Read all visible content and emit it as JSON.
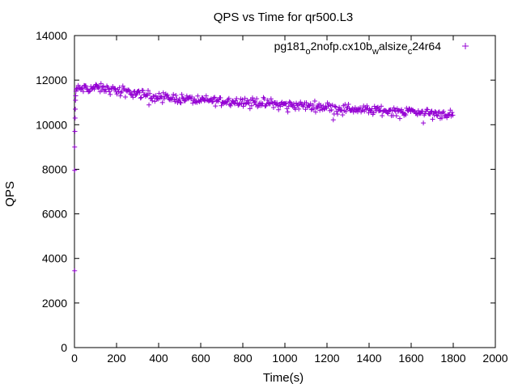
{
  "chart_data": {
    "type": "scatter",
    "title": "QPS vs Time for qr500.L3",
    "xlabel": "Time(s)",
    "ylabel": "QPS",
    "xlim": [
      0,
      2000
    ],
    "ylim": [
      0,
      14000
    ],
    "xticks": [
      0,
      200,
      400,
      600,
      800,
      1000,
      1200,
      1400,
      1600,
      1800,
      2000
    ],
    "yticks": [
      0,
      2000,
      4000,
      6000,
      8000,
      10000,
      12000,
      14000
    ],
    "grid": false,
    "legend_position": "top-right",
    "marker": "+",
    "series": [
      {
        "name": "pg181_o2nofp.cx10b_walsize_c24r64",
        "legend": {
          "base1": "pg181",
          "sub1": "o",
          "mid": "2nofp.cx10b",
          "sub2": "w",
          "mid2": "alsize",
          "sub3": "c",
          "end": "24r64"
        },
        "color": "#9400d3",
        "startup_points": [
          [
            1,
            3450
          ],
          [
            1,
            7950
          ],
          [
            1,
            9000
          ],
          [
            2,
            9700
          ],
          [
            3,
            10300
          ],
          [
            4,
            10700
          ],
          [
            5,
            11100
          ],
          [
            6,
            11300
          ],
          [
            7,
            11500
          ],
          [
            8,
            11600
          ]
        ],
        "trend": [
          [
            10,
            11600
          ],
          [
            100,
            11650
          ],
          [
            200,
            11550
          ],
          [
            300,
            11400
          ],
          [
            400,
            11250
          ],
          [
            600,
            11100
          ],
          [
            800,
            11050
          ],
          [
            1000,
            10900
          ],
          [
            1200,
            10800
          ],
          [
            1400,
            10650
          ],
          [
            1600,
            10600
          ],
          [
            1800,
            10450
          ]
        ],
        "sample_interval_s": 4,
        "spread": 200
      }
    ]
  }
}
